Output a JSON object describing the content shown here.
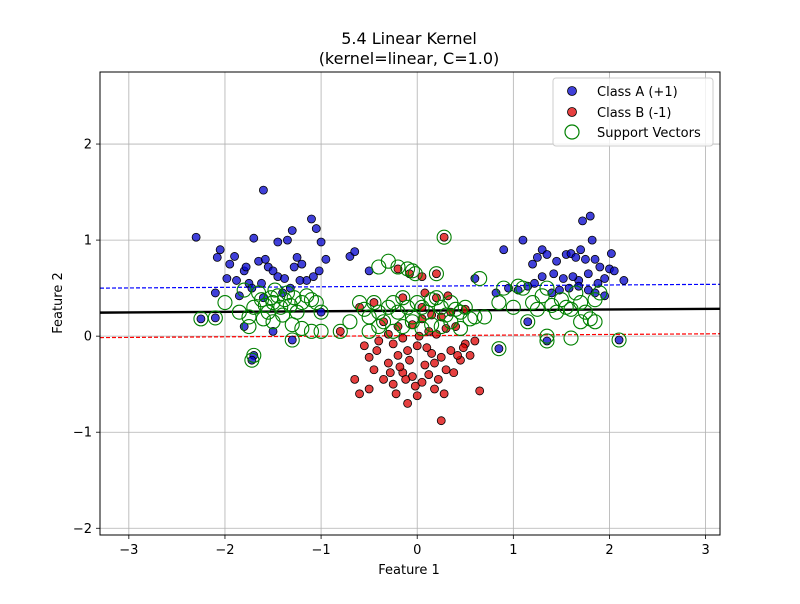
{
  "chart_data": {
    "type": "scatter",
    "title": "5.4 Linear Kernel",
    "subtitle": "(kernel=linear, C=1.0)",
    "xlabel": "Feature 1",
    "ylabel": "Feature 2",
    "xlim": [
      -3.3,
      3.15
    ],
    "ylim": [
      -2.07,
      2.75
    ],
    "xticks": [
      -3,
      -2,
      -1,
      0,
      1,
      2,
      3
    ],
    "yticks": [
      -2,
      -1,
      0,
      1,
      2
    ],
    "xtick_labels": [
      "−3",
      "−2",
      "−1",
      "0",
      "1",
      "2",
      "3"
    ],
    "ytick_labels": [
      "−2",
      "−1",
      "0",
      "1",
      "2"
    ],
    "grid": true,
    "legend_position": "top-right",
    "legend": [
      "Class A (+1)",
      "Class B (-1)",
      "Support Vectors"
    ],
    "colors": {
      "class_a": "#0000cc",
      "class_b": "#dd0000",
      "support": "#008000",
      "decision": "#000000",
      "margin_pos": "#0000ff",
      "margin_neg": "#ff0000"
    },
    "decision_boundary": {
      "x": [
        -3.3,
        3.15
      ],
      "y": [
        0.245,
        0.285
      ]
    },
    "margin_positive": {
      "x": [
        -3.3,
        3.15
      ],
      "y": [
        0.5,
        0.54
      ]
    },
    "margin_negative": {
      "x": [
        -3.3,
        3.15
      ],
      "y": [
        -0.015,
        0.025
      ]
    },
    "series": [
      {
        "name": "Class A (+1)",
        "points": [
          [
            -2.3,
            1.03
          ],
          [
            -1.6,
            1.52
          ],
          [
            -2.05,
            0.9
          ],
          [
            -2.08,
            0.82
          ],
          [
            -1.95,
            0.75
          ],
          [
            -1.9,
            0.83
          ],
          [
            -1.8,
            0.68
          ],
          [
            -1.78,
            0.72
          ],
          [
            -1.7,
            1.02
          ],
          [
            -1.65,
            0.78
          ],
          [
            -1.58,
            0.8
          ],
          [
            -1.55,
            0.72
          ],
          [
            -1.5,
            0.68
          ],
          [
            -1.45,
            0.98
          ],
          [
            -1.35,
            1.0
          ],
          [
            -1.3,
            1.1
          ],
          [
            -1.25,
            0.82
          ],
          [
            -1.2,
            0.75
          ],
          [
            -1.15,
            0.58
          ],
          [
            -1.1,
            1.22
          ],
          [
            -1.05,
            1.12
          ],
          [
            -1.0,
            0.98
          ],
          [
            -0.95,
            0.8
          ],
          [
            -1.02,
            0.68
          ],
          [
            -1.08,
            0.62
          ],
          [
            -0.7,
            0.83
          ],
          [
            -0.65,
            0.88
          ],
          [
            -0.5,
            0.68
          ],
          [
            -1.98,
            0.6
          ],
          [
            -1.88,
            0.58
          ],
          [
            -1.75,
            0.55
          ],
          [
            -1.72,
            0.5
          ],
          [
            -1.62,
            0.55
          ],
          [
            -1.45,
            0.62
          ],
          [
            -1.38,
            0.6
          ],
          [
            -1.32,
            0.5
          ],
          [
            -1.28,
            0.72
          ],
          [
            -1.22,
            0.58
          ],
          [
            -2.1,
            0.45
          ],
          [
            -1.85,
            0.42
          ],
          [
            -1.6,
            0.4
          ],
          [
            -1.4,
            0.45
          ],
          [
            0.6,
            0.6
          ],
          [
            0.9,
            0.9
          ],
          [
            1.1,
            1.0
          ],
          [
            1.2,
            0.75
          ],
          [
            1.25,
            0.82
          ],
          [
            1.3,
            0.9
          ],
          [
            1.35,
            0.85
          ],
          [
            1.45,
            0.78
          ],
          [
            1.55,
            0.85
          ],
          [
            1.6,
            0.86
          ],
          [
            1.65,
            0.82
          ],
          [
            1.7,
            0.9
          ],
          [
            1.72,
            1.2
          ],
          [
            1.8,
            1.25
          ],
          [
            1.82,
            1.0
          ],
          [
            1.75,
            0.8
          ],
          [
            1.78,
            0.65
          ],
          [
            1.85,
            0.8
          ],
          [
            1.9,
            0.72
          ],
          [
            2.0,
            0.7
          ],
          [
            2.02,
            0.86
          ],
          [
            2.05,
            0.68
          ],
          [
            2.15,
            0.58
          ],
          [
            1.95,
            0.6
          ],
          [
            1.88,
            0.55
          ],
          [
            1.68,
            0.58
          ],
          [
            1.62,
            0.62
          ],
          [
            1.52,
            0.6
          ],
          [
            1.42,
            0.65
          ],
          [
            1.3,
            0.62
          ],
          [
            1.22,
            0.55
          ],
          [
            1.15,
            0.52
          ],
          [
            1.05,
            0.48
          ],
          [
            0.95,
            0.5
          ],
          [
            0.82,
            0.45
          ],
          [
            1.4,
            0.45
          ],
          [
            1.48,
            0.48
          ],
          [
            1.58,
            0.5
          ],
          [
            1.68,
            0.52
          ],
          [
            1.78,
            0.48
          ],
          [
            1.85,
            0.45
          ],
          [
            1.95,
            0.42
          ],
          [
            2.1,
            -0.04
          ],
          [
            0.85,
            -0.13
          ],
          [
            1.35,
            -0.05
          ],
          [
            1.15,
            0.15
          ],
          [
            -1.7,
            -0.2
          ],
          [
            -1.72,
            -0.25
          ],
          [
            -2.25,
            0.18
          ],
          [
            -2.1,
            0.19
          ],
          [
            -1.3,
            -0.04
          ],
          [
            -1.0,
            0.25
          ],
          [
            -1.8,
            0.1
          ],
          [
            -1.5,
            0.05
          ]
        ]
      },
      {
        "name": "Class B (-1)",
        "points": [
          [
            0.28,
            1.03
          ],
          [
            0.25,
            -0.88
          ],
          [
            -0.1,
            -0.7
          ],
          [
            0.0,
            -0.62
          ],
          [
            -0.6,
            -0.6
          ],
          [
            -0.5,
            -0.55
          ],
          [
            -0.35,
            -0.45
          ],
          [
            -0.25,
            -0.5
          ],
          [
            -0.15,
            -0.38
          ],
          [
            -0.05,
            -0.42
          ],
          [
            0.05,
            -0.48
          ],
          [
            0.18,
            -0.55
          ],
          [
            0.22,
            -0.45
          ],
          [
            0.3,
            -0.35
          ],
          [
            0.38,
            -0.38
          ],
          [
            0.45,
            -0.25
          ],
          [
            0.55,
            -0.2
          ],
          [
            0.65,
            -0.57
          ],
          [
            -0.65,
            -0.45
          ],
          [
            -0.45,
            -0.35
          ],
          [
            -0.3,
            -0.28
          ],
          [
            -0.2,
            -0.2
          ],
          [
            -0.1,
            -0.15
          ],
          [
            0.0,
            -0.1
          ],
          [
            0.1,
            -0.12
          ],
          [
            0.15,
            -0.18
          ],
          [
            0.25,
            -0.22
          ],
          [
            0.35,
            -0.15
          ],
          [
            0.5,
            -0.08
          ],
          [
            0.6,
            -0.05
          ],
          [
            -0.55,
            -0.1
          ],
          [
            -0.4,
            -0.05
          ],
          [
            -0.25,
            -0.08
          ],
          [
            -0.15,
            -0.02
          ],
          [
            0.02,
            0.0
          ],
          [
            0.12,
            0.05
          ],
          [
            0.2,
            0.02
          ],
          [
            0.3,
            0.08
          ],
          [
            0.4,
            0.1
          ],
          [
            -0.35,
            0.15
          ],
          [
            -0.2,
            0.1
          ],
          [
            -0.05,
            0.12
          ],
          [
            0.05,
            0.18
          ],
          [
            0.15,
            0.22
          ],
          [
            0.25,
            0.2
          ],
          [
            0.35,
            0.25
          ],
          [
            -0.08,
            -0.25
          ],
          [
            -0.18,
            -0.32
          ],
          [
            -0.28,
            -0.38
          ],
          [
            0.08,
            -0.3
          ],
          [
            0.18,
            -0.28
          ],
          [
            -0.02,
            -0.52
          ],
          [
            -0.12,
            -0.45
          ],
          [
            0.12,
            -0.4
          ],
          [
            -0.5,
            -0.22
          ],
          [
            -0.42,
            -0.15
          ],
          [
            0.42,
            -0.2
          ],
          [
            0.48,
            -0.12
          ],
          [
            -0.22,
            -0.6
          ],
          [
            0.28,
            -0.6
          ],
          [
            -0.08,
            0.65
          ],
          [
            0.2,
            0.4
          ],
          [
            -0.6,
            0.3
          ],
          [
            -0.8,
            0.05
          ],
          [
            -0.3,
            0.02
          ],
          [
            0.05,
            0.3
          ],
          [
            0.5,
            0.28
          ],
          [
            -0.45,
            0.35
          ],
          [
            -0.15,
            0.4
          ],
          [
            0.08,
            0.45
          ],
          [
            0.32,
            0.42
          ],
          [
            -0.2,
            0.7
          ],
          [
            0.2,
            0.65
          ],
          [
            0.05,
            0.62
          ]
        ]
      },
      {
        "name": "Support Vectors",
        "points": [
          [
            0.28,
            1.03
          ],
          [
            -0.3,
            0.78
          ],
          [
            -0.4,
            0.72
          ],
          [
            -0.2,
            0.72
          ],
          [
            -0.1,
            0.7
          ],
          [
            -0.05,
            0.68
          ],
          [
            -0.02,
            0.65
          ],
          [
            0.2,
            0.65
          ],
          [
            0.65,
            0.6
          ],
          [
            -2.0,
            0.35
          ],
          [
            -1.85,
            0.25
          ],
          [
            -1.75,
            0.2
          ],
          [
            -1.7,
            0.3
          ],
          [
            -1.65,
            0.45
          ],
          [
            -1.62,
            0.38
          ],
          [
            -1.58,
            0.32
          ],
          [
            -1.55,
            0.25
          ],
          [
            -1.52,
            0.4
          ],
          [
            -1.5,
            0.35
          ],
          [
            -1.48,
            0.48
          ],
          [
            -1.45,
            0.42
          ],
          [
            -1.42,
            0.3
          ],
          [
            -1.4,
            0.22
          ],
          [
            -1.38,
            0.38
          ],
          [
            -1.35,
            0.45
          ],
          [
            -1.32,
            0.32
          ],
          [
            -1.28,
            0.4
          ],
          [
            -1.25,
            0.25
          ],
          [
            -1.2,
            0.35
          ],
          [
            -1.15,
            0.42
          ],
          [
            -1.1,
            0.38
          ],
          [
            -1.05,
            0.35
          ],
          [
            -1.0,
            0.25
          ],
          [
            -1.8,
            0.48
          ],
          [
            -1.75,
            0.1
          ],
          [
            -1.6,
            0.18
          ],
          [
            -1.5,
            0.15
          ],
          [
            -1.3,
            0.12
          ],
          [
            -1.2,
            0.08
          ],
          [
            -1.1,
            0.05
          ],
          [
            -1.3,
            -0.04
          ],
          [
            -2.25,
            0.18
          ],
          [
            -2.1,
            0.19
          ],
          [
            -1.7,
            -0.2
          ],
          [
            -1.72,
            -0.25
          ],
          [
            -1.0,
            0.05
          ],
          [
            -0.8,
            0.05
          ],
          [
            -0.7,
            0.15
          ],
          [
            -0.6,
            0.35
          ],
          [
            -0.55,
            0.28
          ],
          [
            -0.5,
            0.2
          ],
          [
            -0.45,
            0.35
          ],
          [
            -0.4,
            0.25
          ],
          [
            -0.35,
            0.15
          ],
          [
            -0.3,
            0.3
          ],
          [
            -0.25,
            0.35
          ],
          [
            -0.2,
            0.25
          ],
          [
            -0.15,
            0.4
          ],
          [
            -0.1,
            0.3
          ],
          [
            -0.05,
            0.2
          ],
          [
            0.0,
            0.35
          ],
          [
            0.05,
            0.3
          ],
          [
            0.1,
            0.25
          ],
          [
            0.15,
            0.38
          ],
          [
            0.2,
            0.4
          ],
          [
            0.25,
            0.3
          ],
          [
            0.3,
            0.22
          ],
          [
            0.35,
            0.35
          ],
          [
            0.4,
            0.28
          ],
          [
            0.45,
            0.25
          ],
          [
            0.5,
            0.3
          ],
          [
            -0.25,
            0.05
          ],
          [
            -0.15,
            0.1
          ],
          [
            -0.05,
            0.15
          ],
          [
            0.05,
            0.08
          ],
          [
            0.15,
            0.12
          ],
          [
            0.25,
            0.1
          ],
          [
            0.35,
            0.15
          ],
          [
            0.45,
            0.08
          ],
          [
            0.55,
            0.18
          ],
          [
            -0.4,
            0.1
          ],
          [
            -0.5,
            0.05
          ],
          [
            0.6,
            0.2
          ],
          [
            0.7,
            0.2
          ],
          [
            0.85,
            0.35
          ],
          [
            0.9,
            0.5
          ],
          [
            1.0,
            0.3
          ],
          [
            1.05,
            0.52
          ],
          [
            1.1,
            0.5
          ],
          [
            1.15,
            0.15
          ],
          [
            1.2,
            0.35
          ],
          [
            1.25,
            0.28
          ],
          [
            1.3,
            0.42
          ],
          [
            1.35,
            0.5
          ],
          [
            1.4,
            0.32
          ],
          [
            1.45,
            0.25
          ],
          [
            1.5,
            0.38
          ],
          [
            1.55,
            0.3
          ],
          [
            1.6,
            0.28
          ],
          [
            1.65,
            0.45
          ],
          [
            1.7,
            0.35
          ],
          [
            1.75,
            0.25
          ],
          [
            1.8,
            0.18
          ],
          [
            1.85,
            0.38
          ],
          [
            1.9,
            0.45
          ],
          [
            1.6,
            -0.02
          ],
          [
            1.35,
            -0.05
          ],
          [
            1.35,
            0.0
          ],
          [
            0.85,
            -0.13
          ],
          [
            2.1,
            -0.04
          ],
          [
            1.7,
            0.15
          ],
          [
            1.85,
            0.15
          ]
        ]
      }
    ]
  }
}
